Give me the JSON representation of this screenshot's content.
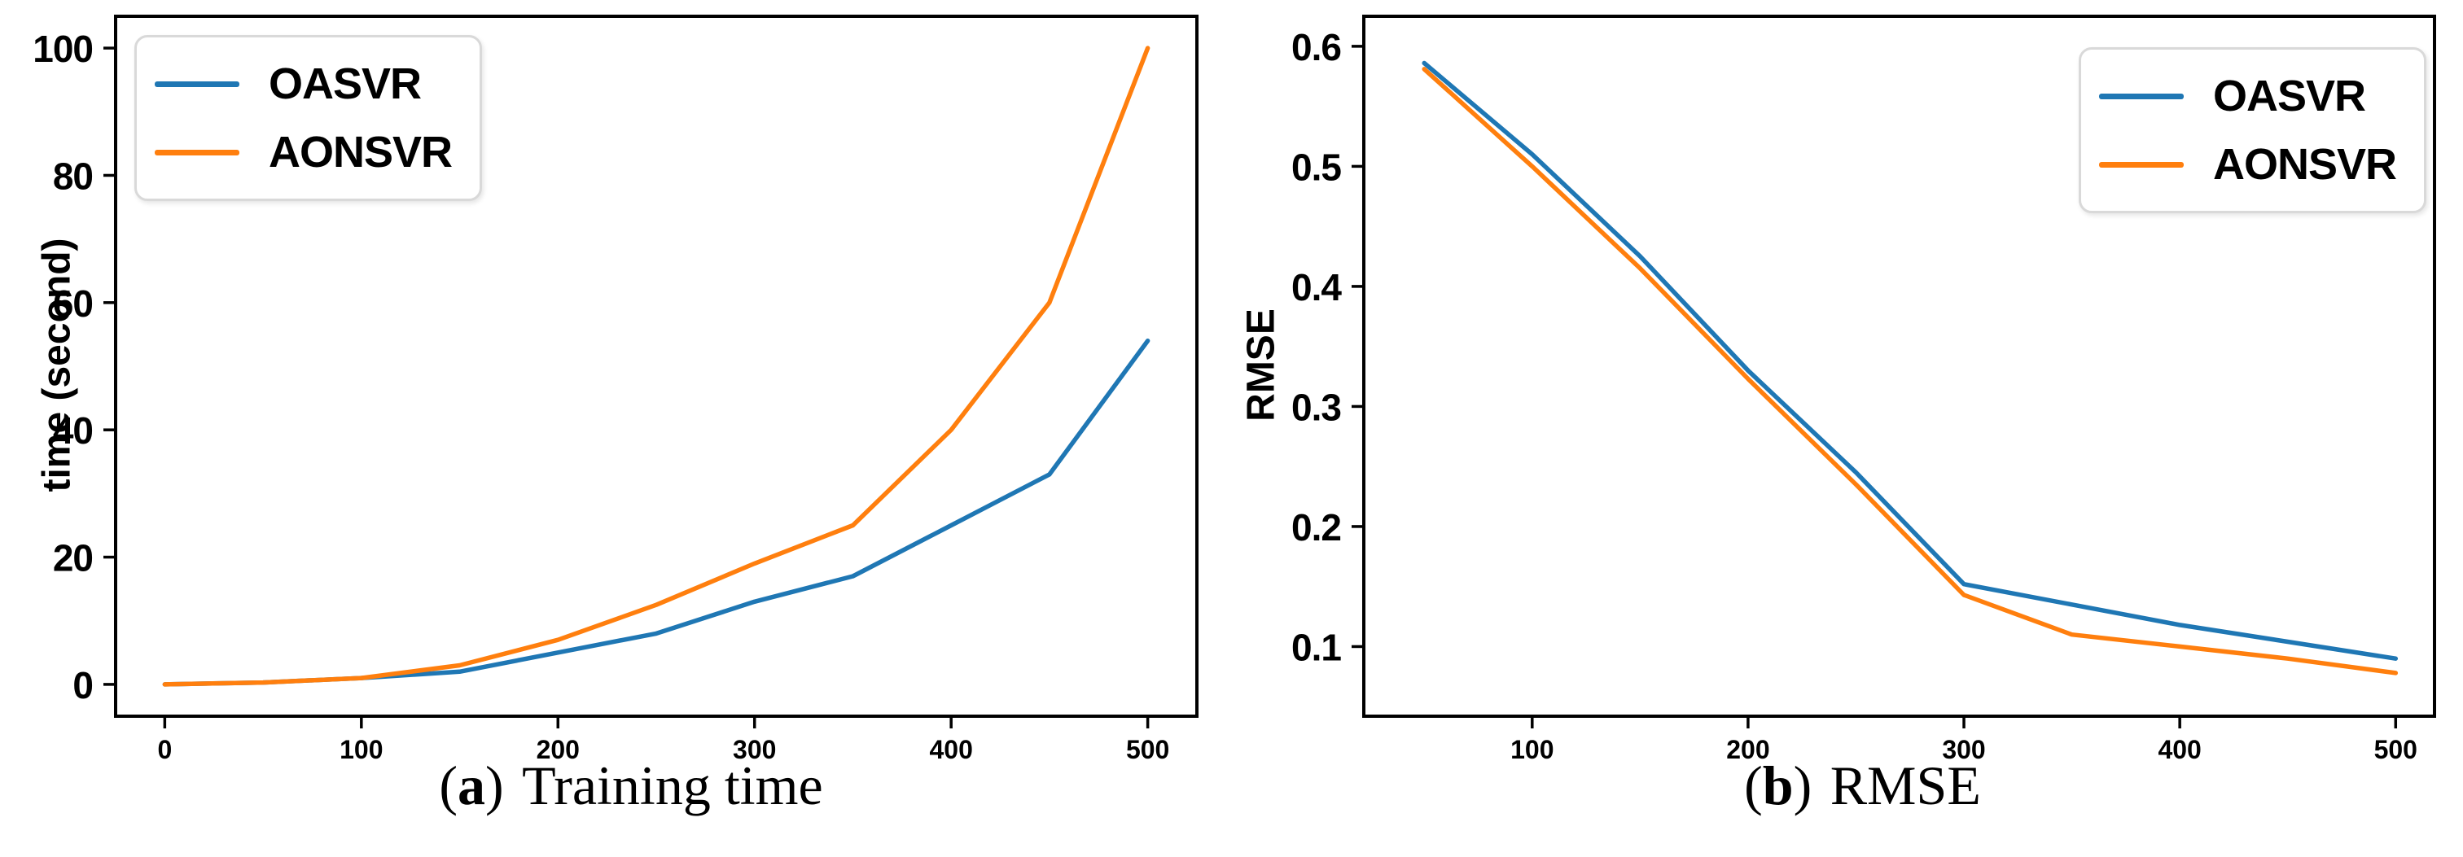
{
  "figure": {
    "captions": [
      {
        "letter": "a",
        "text": "Training time"
      },
      {
        "letter": "b",
        "text": "RMSE"
      }
    ]
  },
  "colors": {
    "oasvr": "#1f77b4",
    "aonsvr": "#ff7f0e",
    "axis": "#000000",
    "legend_border": "#d9d9d9"
  },
  "chart_data": [
    {
      "type": "line",
      "title": "(a) Training time",
      "xlabel": "",
      "ylabel": "time (second)",
      "x": [
        0,
        50,
        100,
        150,
        200,
        250,
        300,
        350,
        400,
        450,
        500
      ],
      "series": [
        {
          "name": "OASVR",
          "color": "#1f77b4",
          "values": [
            0,
            0.3,
            1,
            2,
            5,
            8,
            13,
            17,
            25,
            33,
            54
          ]
        },
        {
          "name": "AONSVR",
          "color": "#ff7f0e",
          "values": [
            0,
            0.3,
            1,
            3,
            7,
            12.5,
            19,
            25,
            40,
            60,
            100
          ]
        }
      ],
      "xticks": {
        "values": [
          0,
          100,
          200,
          300,
          400,
          500
        ],
        "labels": [
          "0",
          "100",
          "200",
          "300",
          "400",
          "500"
        ]
      },
      "yticks": {
        "values": [
          0,
          20,
          40,
          60,
          80,
          100
        ],
        "labels": [
          "0",
          "20",
          "40",
          "60",
          "80",
          "100"
        ]
      },
      "xlim": [
        -25,
        525
      ],
      "ylim": [
        -5,
        105
      ],
      "grid": false,
      "legend_position": "upper left"
    },
    {
      "type": "line",
      "title": "(b) RMSE",
      "xlabel": "",
      "ylabel": "RMSE",
      "x": [
        50,
        100,
        150,
        200,
        250,
        300,
        350,
        400,
        450,
        500
      ],
      "series": [
        {
          "name": "OASVR",
          "color": "#1f77b4",
          "values": [
            0.586,
            0.51,
            0.425,
            0.33,
            0.245,
            0.152,
            0.135,
            0.118,
            0.104,
            0.09
          ]
        },
        {
          "name": "AONSVR",
          "color": "#ff7f0e",
          "values": [
            0.581,
            0.5,
            0.415,
            0.323,
            0.235,
            0.143,
            0.11,
            0.1,
            0.09,
            0.078
          ]
        }
      ],
      "xticks": {
        "values": [
          100,
          200,
          300,
          400,
          500
        ],
        "labels": [
          "100",
          "200",
          "300",
          "400",
          "500"
        ]
      },
      "yticks": {
        "values": [
          0.1,
          0.2,
          0.3,
          0.4,
          0.5,
          0.6
        ],
        "labels": [
          "0.1",
          "0.2",
          "0.3",
          "0.4",
          "0.5",
          "0.6"
        ]
      },
      "xlim": [
        22,
        518
      ],
      "ylim": [
        0.042,
        0.625
      ],
      "grid": false,
      "legend_position": "upper right"
    }
  ]
}
